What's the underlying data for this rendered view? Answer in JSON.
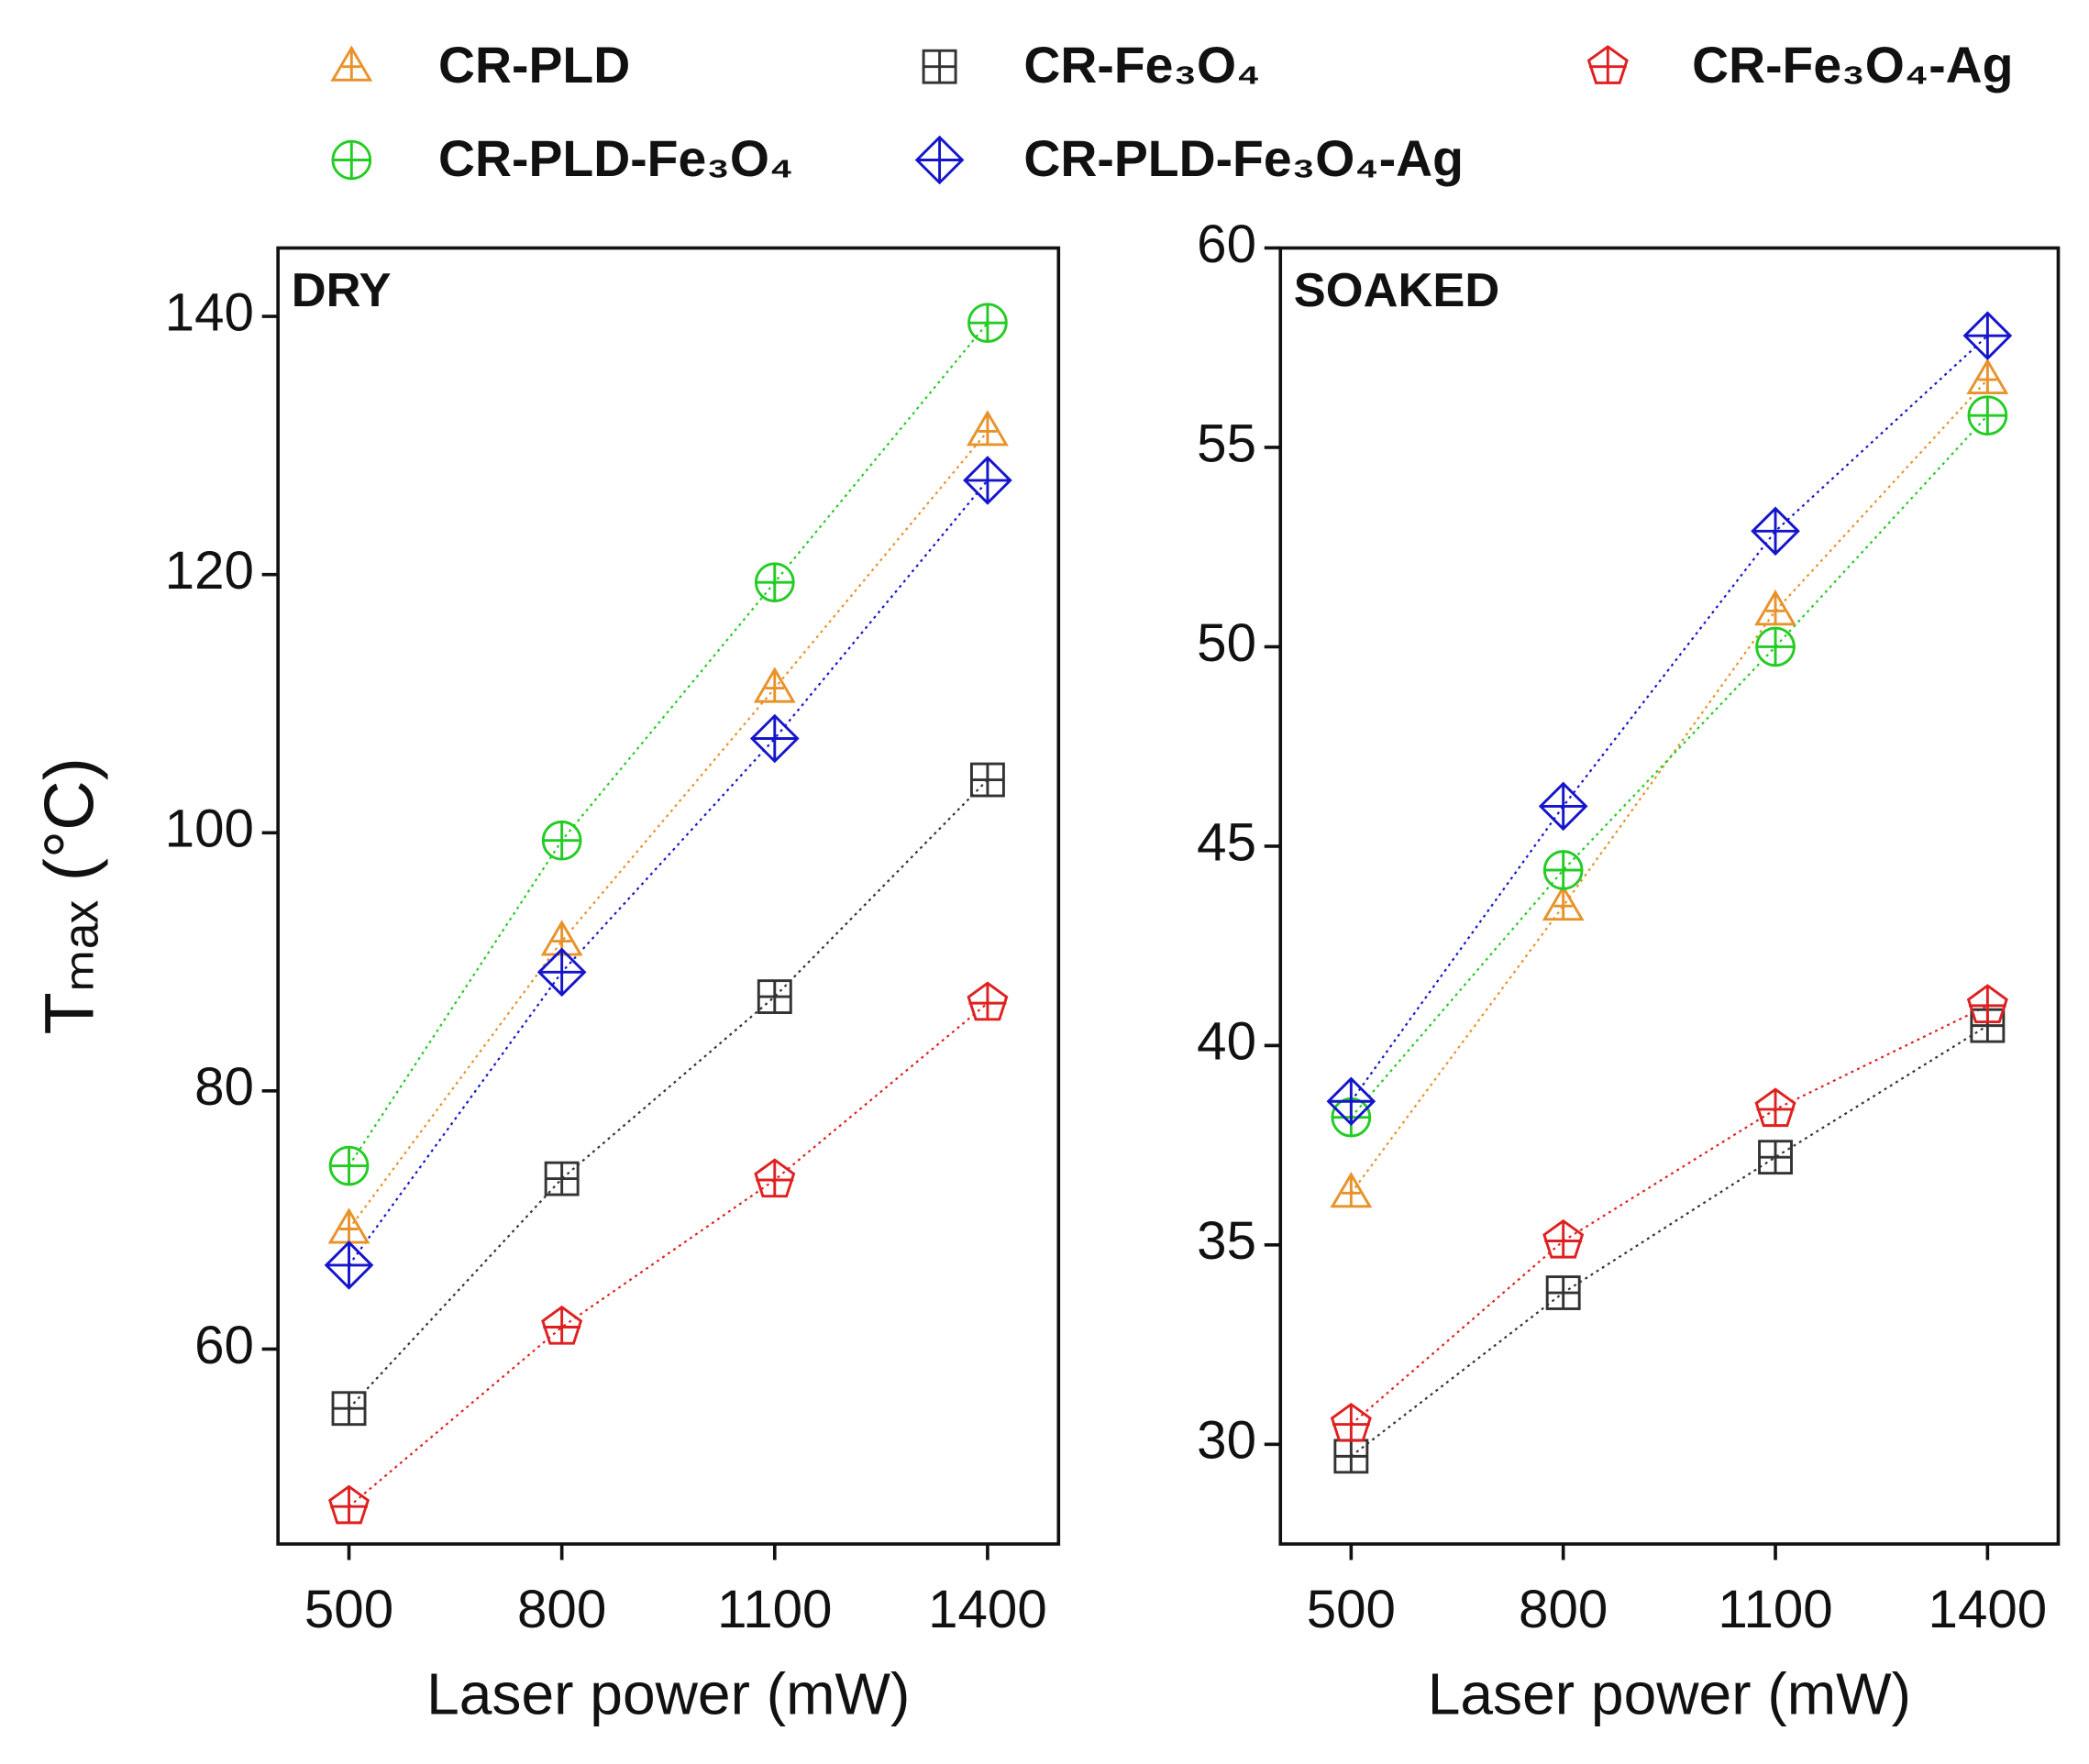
{
  "chart_data": [
    {
      "type": "scatter",
      "label": "DRY",
      "xlabel": "Laser power (mW)",
      "ylabel": "Tₘₐₓ (°C)",
      "x": [
        500,
        800,
        1100,
        1400
      ],
      "xlim": [
        400,
        1500
      ],
      "xticks": [
        500,
        800,
        1100,
        1400
      ],
      "ylim": [
        44.9,
        145.3
      ],
      "yticks": [
        60,
        80,
        100,
        120,
        140
      ],
      "series": [
        {
          "name": "CR-PLD",
          "color": "#e8922a",
          "marker": "triangle",
          "values": [
            69.3,
            91.6,
            111.2,
            131.1
          ]
        },
        {
          "name": "CR-Fe₃O₄",
          "color": "#333333",
          "marker": "square",
          "values": [
            55.4,
            73.2,
            87.3,
            104.1
          ]
        },
        {
          "name": "CR-Fe₃O₄-Ag",
          "color": "#e02020",
          "marker": "pentagon",
          "values": [
            47.8,
            61.7,
            73.1,
            86.8
          ]
        },
        {
          "name": "CR-PLD-Fe₃O₄",
          "color": "#22cc22",
          "marker": "circle",
          "values": [
            74.2,
            99.4,
            119.4,
            139.5
          ]
        },
        {
          "name": "CR-PLD-Fe₃O₄-Ag",
          "color": "#1515cc",
          "marker": "diamond",
          "values": [
            66.5,
            89.2,
            107.3,
            127.3
          ]
        }
      ]
    },
    {
      "type": "scatter",
      "label": "SOAKED",
      "xlabel": "Laser power (mW)",
      "x": [
        500,
        800,
        1100,
        1400
      ],
      "xlim": [
        400,
        1500
      ],
      "xticks": [
        500,
        800,
        1100,
        1400
      ],
      "ylim": [
        27.5,
        60
      ],
      "yticks": [
        30,
        35,
        40,
        45,
        50,
        55,
        60
      ],
      "series": [
        {
          "color": "#e8922a",
          "marker": "triangle",
          "values": [
            36.3,
            43.5,
            50.9,
            56.7
          ]
        },
        {
          "color": "#333333",
          "marker": "square",
          "values": [
            29.7,
            33.8,
            37.2,
            40.5
          ]
        },
        {
          "color": "#e02020",
          "marker": "pentagon",
          "values": [
            30.5,
            35.1,
            38.4,
            41.0
          ]
        },
        {
          "color": "#22cc22",
          "marker": "circle",
          "values": [
            38.2,
            44.4,
            50.0,
            55.8
          ]
        },
        {
          "color": "#1515cc",
          "marker": "diamond",
          "values": [
            38.6,
            46.0,
            52.9,
            57.8
          ]
        }
      ]
    }
  ]
}
